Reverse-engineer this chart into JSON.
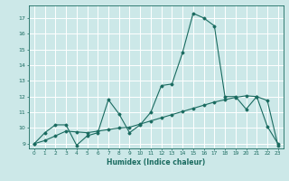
{
  "xlabel": "Humidex (Indice chaleur)",
  "ylabel": "",
  "background_color": "#cce8e8",
  "grid_color": "#ffffff",
  "line_color": "#1a6b60",
  "xlim": [
    -0.5,
    23.5
  ],
  "ylim": [
    8.7,
    17.8
  ],
  "yticks": [
    9,
    10,
    11,
    12,
    13,
    14,
    15,
    16,
    17
  ],
  "xticks": [
    0,
    1,
    2,
    3,
    4,
    5,
    6,
    7,
    8,
    9,
    10,
    11,
    12,
    13,
    14,
    15,
    16,
    17,
    18,
    19,
    20,
    21,
    22,
    23
  ],
  "line1_x": [
    0,
    1,
    2,
    3,
    4,
    5,
    6,
    7,
    8,
    9,
    10,
    11,
    12,
    13,
    14,
    15,
    16,
    17,
    18,
    19,
    20,
    21,
    22,
    23
  ],
  "line1_y": [
    9.0,
    9.7,
    10.2,
    10.2,
    8.9,
    9.5,
    9.7,
    11.8,
    10.9,
    9.7,
    10.2,
    11.0,
    12.7,
    12.8,
    14.8,
    17.3,
    17.0,
    16.5,
    12.0,
    12.0,
    11.2,
    12.0,
    10.1,
    9.0
  ],
  "line2_x": [
    0,
    1,
    2,
    3,
    4,
    5,
    6,
    7,
    8,
    9,
    10,
    11,
    12,
    13,
    14,
    15,
    16,
    17,
    18,
    19,
    20,
    21,
    22,
    23
  ],
  "line2_y": [
    9.0,
    9.2,
    9.5,
    9.8,
    9.75,
    9.7,
    9.8,
    9.9,
    10.0,
    10.05,
    10.25,
    10.45,
    10.65,
    10.85,
    11.05,
    11.25,
    11.45,
    11.65,
    11.8,
    11.95,
    12.05,
    12.0,
    11.75,
    8.9
  ]
}
